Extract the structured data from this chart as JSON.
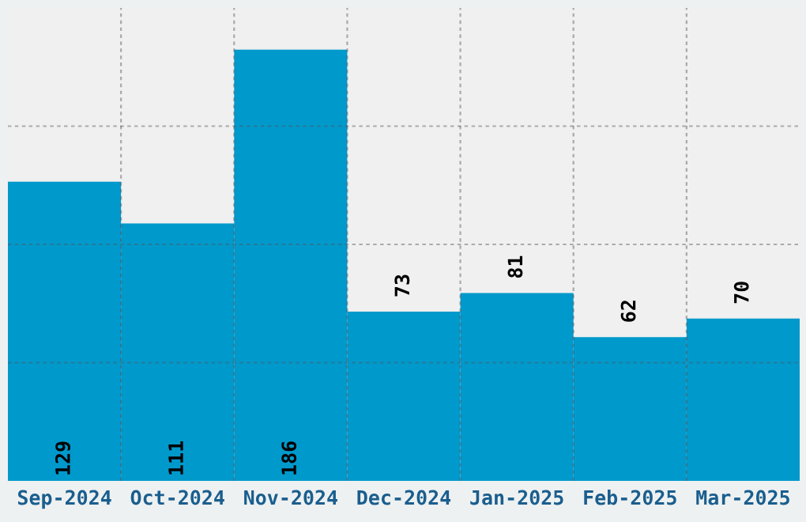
{
  "chart_data": {
    "type": "bar",
    "categories": [
      "Sep-2024",
      "Oct-2024",
      "Nov-2024",
      "Dec-2024",
      "Jan-2025",
      "Feb-2025",
      "Mar-2025"
    ],
    "values": [
      129,
      111,
      186,
      73,
      81,
      62,
      70
    ],
    "color": "#0099cc",
    "data_labels": true,
    "ylim": [
      0,
      204
    ],
    "yticks": [
      {
        "value": 51,
        "label": null
      },
      {
        "value": 102,
        "label": null
      },
      {
        "value": 153,
        "label": null
      }
    ],
    "grid": true
  }
}
